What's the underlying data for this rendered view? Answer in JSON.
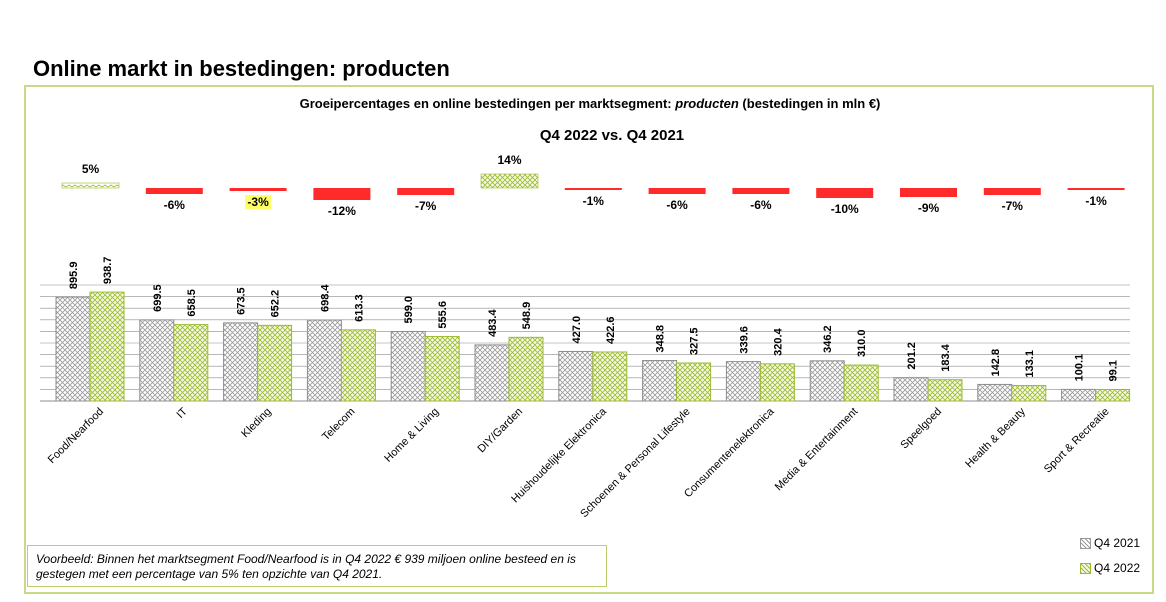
{
  "page_title": "Online markt in bestedingen: producten",
  "chart_data": {
    "type": "bar",
    "title_prefix": "Groeipercentages en online bestedingen per marktsegment: ",
    "title_emphasis": "producten",
    "title_suffix": " (bestedingen in mln €)",
    "subtitle": "Q4 2022 vs. Q4 2021",
    "categories": [
      "Food/Nearfood",
      "IT",
      "Kleding",
      "Telecom",
      "Home & Living",
      "DIY/Garden",
      "Huishoudelijke Elektronica",
      "Schoenen & Personal Lifestyle",
      "Consumentenelektronica",
      "Media & Entertainment",
      "Speelgoed",
      "Health & Beauty",
      "Sport & Recreatie"
    ],
    "series": [
      {
        "name": "Q4 2021",
        "values": [
          895.9,
          699.5,
          673.5,
          698.4,
          599.0,
          483.4,
          427.0,
          348.8,
          339.6,
          346.2,
          201.2,
          142.8,
          100.1
        ],
        "labels": [
          "895.9",
          "699.5",
          "673.5",
          "698.4",
          "599.0",
          "483.4",
          "427.0",
          "348.8",
          "339.6",
          "346.2",
          "201.2",
          "142.8",
          "100.1"
        ],
        "color": "#a6a6a6"
      },
      {
        "name": "Q4 2022",
        "values": [
          938.7,
          658.5,
          652.2,
          613.3,
          555.6,
          548.9,
          422.6,
          327.5,
          320.4,
          310.0,
          183.4,
          133.1,
          99.1
        ],
        "labels": [
          "938.7",
          "658.5",
          "652.2",
          "613.3",
          "555.6",
          "548.9",
          "422.6",
          "327.5",
          "320.4",
          "310.0",
          "183.4",
          "133.1",
          "99.1"
        ],
        "color": "#9bbb2f"
      }
    ],
    "growth": {
      "values": [
        5,
        -6,
        -3,
        -12,
        -7,
        14,
        -1,
        -6,
        -6,
        -10,
        -9,
        -7,
        -1
      ],
      "labels": [
        "5%",
        "-6%",
        "-3%",
        "-12%",
        "-7%",
        "14%",
        "-1%",
        "-6%",
        "-6%",
        "-10%",
        "-9%",
        "-7%",
        "-1%"
      ],
      "highlighted_index": 2,
      "highlight_color": "#ffff66",
      "negative_color": "#ff2a2a",
      "positive_color": "#9bbb2f"
    },
    "ylim": [
      0,
      1000
    ],
    "grid": true,
    "legend_position": "bottom-right"
  },
  "note": "Voorbeeld: Binnen het marktsegment Food/Nearfood is in Q4 2022 € 939 miljoen online besteed en is gestegen met een percentage van 5% ten opzichte van Q4 2021."
}
